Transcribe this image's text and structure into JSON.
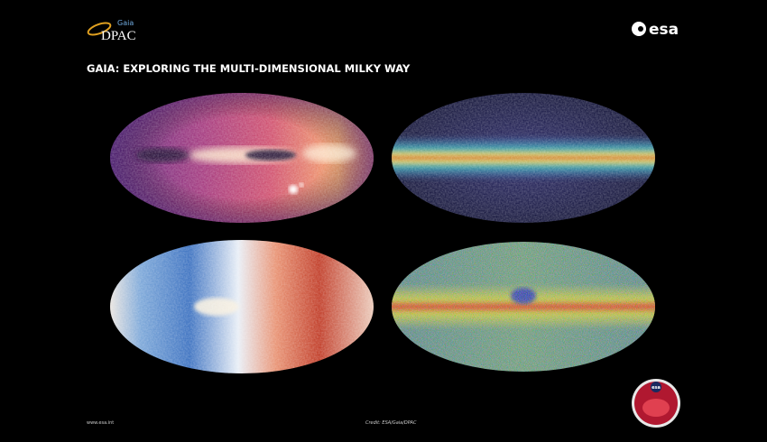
{
  "header": {
    "partner_logo": {
      "small": "Gaia",
      "large": "DPAC"
    },
    "agency_logo": "esa",
    "title": "GAIA: EXPLORING THE MULTI-DIMENSIONAL MILKY WAY"
  },
  "footer": {
    "website": "www.esa.int",
    "credit": "Credit: ESA/Gaia/DPAC"
  },
  "badge": {
    "label": "esa"
  }
}
